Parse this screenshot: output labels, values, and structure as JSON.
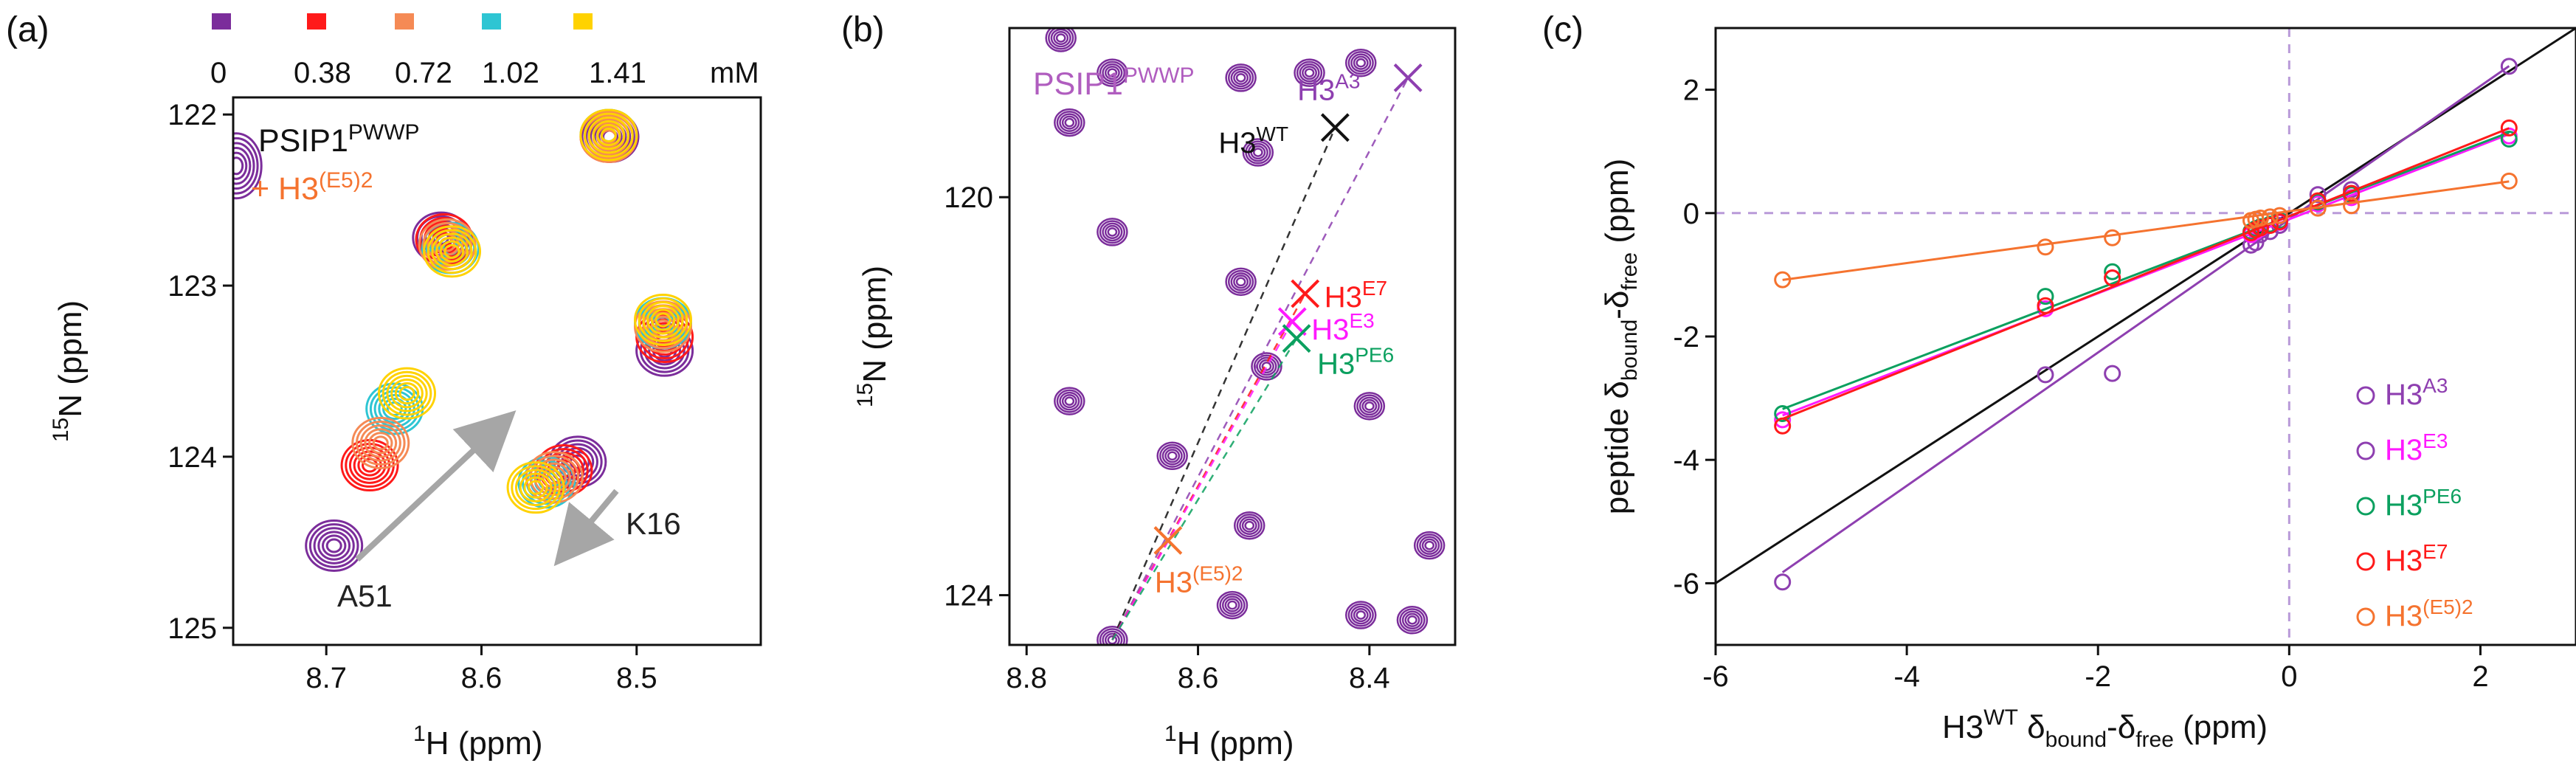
{
  "figure": {
    "panel_labels": [
      "(a)",
      "(b)",
      "(c)"
    ]
  },
  "chart_data": [
    {
      "type": "contour-spectrum",
      "panel": "(a)",
      "xlabel_sup": "1",
      "xlabel": "H (ppm)",
      "ylabel_sup": "15",
      "ylabel": "N (ppm)",
      "xlim": [
        8.76,
        8.42
      ],
      "ylim": [
        125.1,
        121.9
      ],
      "xticks": [
        8.7,
        8.6,
        8.5
      ],
      "xtick_labels": [
        "8.7",
        "8.6",
        "8.5"
      ],
      "yticks": [
        122,
        123,
        124,
        125
      ],
      "ytick_labels": [
        "122",
        "123",
        "124",
        "125"
      ],
      "legend": {
        "colors": [
          "#7b2d9b",
          "#ff1a1a",
          "#f58a55",
          "#2ec5d3",
          "#ffd200"
        ],
        "values": [
          "0",
          "0.38",
          "0.72",
          "1.02",
          "1.41"
        ],
        "unit": "mM"
      },
      "title_line1": "PSIP1",
      "title_line1_sup": "PWWP",
      "title_line2": "+ H3",
      "title_line2_sup": "(E5)2",
      "annotations": [
        {
          "text": "A51",
          "color": "#222222"
        },
        {
          "text": "K16",
          "color": "#222222"
        }
      ],
      "arrows": [
        {
          "from": [
            8.68,
            124.6
          ],
          "to": [
            8.586,
            123.8
          ]
        },
        {
          "from": [
            8.513,
            124.2
          ],
          "to": [
            8.546,
            124.56
          ]
        }
      ],
      "peaks": [
        {
          "name": "edge-peak",
          "series": [
            [
              8.758,
              122.3
            ]
          ]
        },
        {
          "name": "peak-122",
          "series": [
            [
              8.517,
              122.13
            ],
            [
              8.518,
              122.13
            ],
            [
              8.518,
              122.13
            ],
            [
              8.518,
              122.12
            ],
            [
              8.518,
              122.12
            ]
          ]
        },
        {
          "name": "peak-1228",
          "series": [
            [
              8.626,
              122.72
            ],
            [
              8.624,
              122.73
            ],
            [
              8.622,
              122.76
            ],
            [
              8.62,
              122.78
            ],
            [
              8.619,
              122.8
            ]
          ]
        },
        {
          "name": "peak-1233",
          "series": [
            [
              8.482,
              123.38
            ],
            [
              8.482,
              123.3
            ],
            [
              8.483,
              123.24
            ],
            [
              8.483,
              123.22
            ],
            [
              8.483,
              123.2
            ]
          ]
        },
        {
          "name": "A51",
          "series": [
            [
              8.695,
              124.52
            ],
            [
              8.672,
              124.05
            ],
            [
              8.665,
              123.92
            ],
            [
              8.656,
              123.72
            ],
            [
              8.648,
              123.63
            ]
          ]
        },
        {
          "name": "K16",
          "series": [
            [
              8.538,
              124.03
            ],
            [
              8.547,
              124.08
            ],
            [
              8.553,
              124.12
            ],
            [
              8.558,
              124.15
            ],
            [
              8.565,
              124.18
            ]
          ]
        }
      ]
    },
    {
      "type": "contour-spectrum",
      "panel": "(b)",
      "xlabel_sup": "1",
      "xlabel": "H (ppm)",
      "ylabel_sup": "15",
      "ylabel": "N (ppm)",
      "xlim": [
        8.82,
        8.3
      ],
      "ylim": [
        124.5,
        118.3
      ],
      "xticks": [
        8.8,
        8.6,
        8.4
      ],
      "xtick_labels": [
        "8.8",
        "8.6",
        "8.4"
      ],
      "yticks": [
        120,
        124
      ],
      "ytick_labels": [
        "120",
        "124"
      ],
      "title": "PSIP1",
      "title_sup": "PWWP",
      "peaks": [
        [
          8.76,
          118.4
        ],
        [
          8.7,
          118.75
        ],
        [
          8.55,
          118.8
        ],
        [
          8.47,
          118.75
        ],
        [
          8.41,
          118.65
        ],
        [
          8.75,
          119.25
        ],
        [
          8.53,
          119.55
        ],
        [
          8.7,
          120.35
        ],
        [
          8.55,
          120.85
        ],
        [
          8.75,
          122.05
        ],
        [
          8.4,
          122.1
        ],
        [
          8.63,
          122.6
        ],
        [
          8.52,
          121.7
        ],
        [
          8.54,
          123.3
        ],
        [
          8.33,
          123.5
        ],
        [
          8.41,
          124.2
        ],
        [
          8.35,
          124.25
        ],
        [
          8.56,
          124.1
        ],
        [
          8.7,
          124.45
        ]
      ],
      "reference_point": [
        8.7,
        124.45
      ],
      "markers": [
        {
          "label": "H3",
          "sup": "A3",
          "position": [
            8.355,
            118.8
          ],
          "color": "#8e3fb0"
        },
        {
          "label": "H3",
          "sup": "WT",
          "position": [
            8.44,
            119.3
          ],
          "color": "#111111"
        },
        {
          "label": "H3",
          "sup": "E7",
          "position": [
            8.475,
            120.97
          ],
          "color": "#ff1a1a"
        },
        {
          "label": "H3",
          "sup": "E3",
          "position": [
            8.49,
            121.25
          ],
          "color": "#ff19ff"
        },
        {
          "label": "H3",
          "sup": "PE6",
          "position": [
            8.485,
            121.42
          ],
          "color": "#0ba05f"
        },
        {
          "label": "H3",
          "sup": "(E5)2",
          "position": [
            8.635,
            123.45
          ],
          "color": "#f5732f"
        }
      ]
    },
    {
      "type": "scatter",
      "panel": "(c)",
      "xlabel": "H3",
      "xlabel_sup": "WT",
      "xlabel_delta": " δ",
      "xlabel_sub1": "bound",
      "xlabel_mid": "-δ",
      "xlabel_sub2": "free",
      "xlabel_unit": " (ppm)",
      "ylabel": "peptide δ",
      "ylabel_sub1": "bound",
      "ylabel_mid": "-δ",
      "ylabel_sub2": "free",
      "ylabel_unit": " (ppm)",
      "xlim": [
        -6,
        3
      ],
      "ylim": [
        -7,
        3
      ],
      "xticks": [
        -6,
        -4,
        -2,
        0,
        2
      ],
      "xtick_labels": [
        "-6",
        "-4",
        "-2",
        "0",
        "2"
      ],
      "yticks": [
        -6,
        -4,
        -2,
        0,
        2
      ],
      "ytick_labels": [
        "-6",
        "-4",
        "-2",
        "0",
        "2"
      ],
      "x": [
        -5.3,
        -2.55,
        -1.85,
        -0.4,
        -0.35,
        -0.3,
        -0.2,
        -0.1,
        0.3,
        0.65,
        2.3
      ],
      "series": [
        {
          "name": "H3",
          "sup": "A3",
          "color": "#8e3fb0",
          "slope": 1.08,
          "intercept": -0.1,
          "values": [
            -5.98,
            -2.62,
            -2.6,
            -0.52,
            -0.48,
            -0.35,
            -0.3,
            -0.2,
            0.3,
            0.38,
            2.38
          ]
        },
        {
          "name": "H3",
          "sup": "E3",
          "color": "#ff19ff",
          "slope": 0.6,
          "intercept": -0.1,
          "values": [
            -3.35,
            -1.55,
            -1.05,
            -0.35,
            -0.3,
            -0.25,
            -0.2,
            -0.15,
            0.15,
            0.25,
            1.25
          ]
        },
        {
          "name": "H3",
          "sup": "PE6",
          "color": "#0ba05f",
          "slope": 0.59,
          "intercept": -0.05,
          "values": [
            -3.25,
            -1.35,
            -0.95,
            -0.3,
            -0.25,
            -0.22,
            -0.18,
            -0.12,
            0.18,
            0.3,
            1.2
          ]
        },
        {
          "name": "H3",
          "sup": "E7",
          "color": "#ff1a1a",
          "slope": 0.62,
          "intercept": -0.05,
          "values": [
            -3.45,
            -1.5,
            -1.05,
            -0.32,
            -0.27,
            -0.24,
            -0.2,
            -0.14,
            0.2,
            0.32,
            1.38
          ]
        },
        {
          "name": "H3",
          "sup": "(E5)2",
          "color": "#f5732f",
          "slope": 0.21,
          "intercept": 0.03,
          "values": [
            -1.08,
            -0.55,
            -0.4,
            -0.12,
            -0.1,
            -0.08,
            -0.06,
            -0.04,
            0.08,
            0.12,
            0.52
          ]
        }
      ],
      "identity_line": {
        "color": "#111111",
        "slope": 1,
        "intercept": 0
      }
    }
  ]
}
